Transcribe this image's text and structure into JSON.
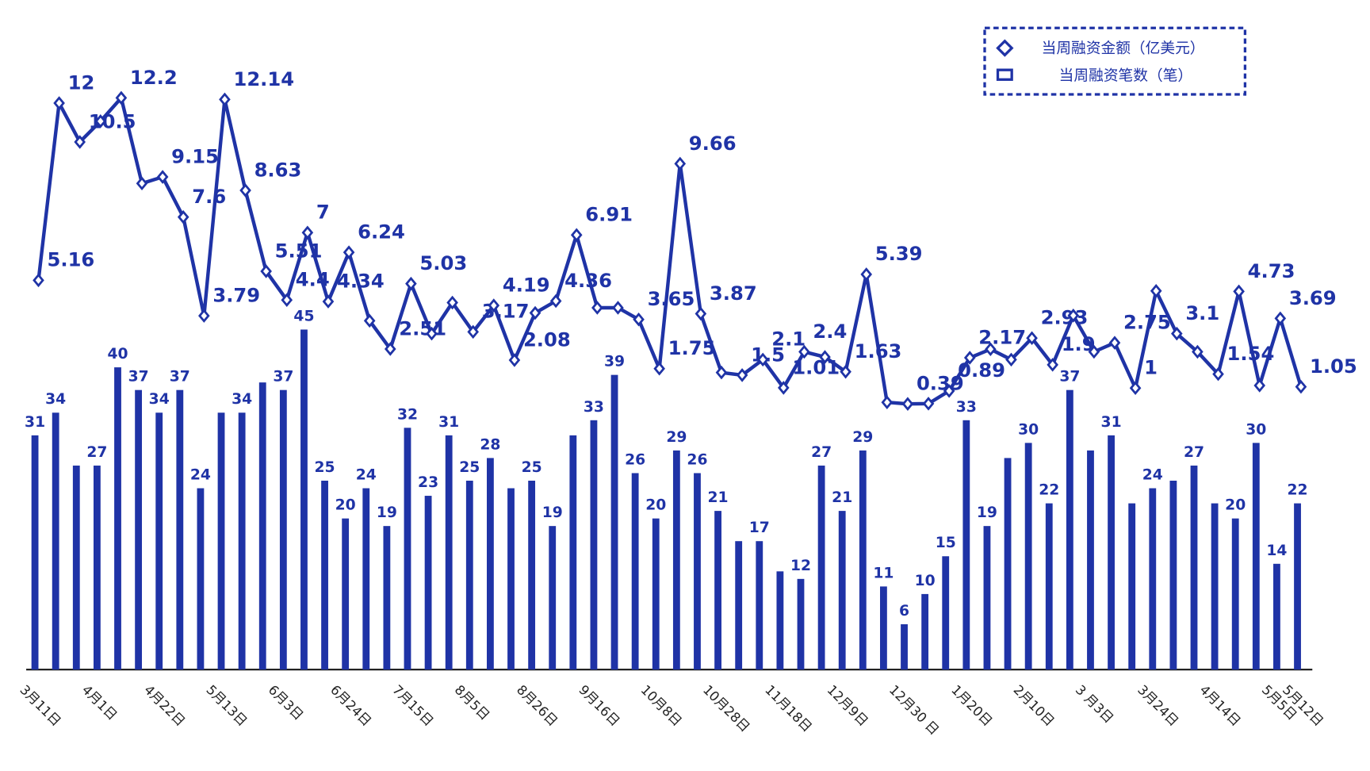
{
  "chart_data": {
    "type": "combo",
    "categories": [
      "3月11日",
      null,
      null,
      "4月1日",
      null,
      null,
      "4月22日",
      null,
      null,
      "5月13日",
      null,
      null,
      "6月3日",
      null,
      null,
      "6月24日",
      null,
      null,
      "7月15日",
      null,
      null,
      "8月5日",
      null,
      null,
      "8月26日",
      null,
      null,
      "9月16日",
      null,
      null,
      "10月8日",
      null,
      null,
      "10月28日",
      null,
      null,
      "11月18日",
      null,
      null,
      "12月9日",
      null,
      null,
      "12月30 日",
      null,
      null,
      "1月20日",
      null,
      null,
      "2月10日",
      null,
      null,
      "3 月3日",
      null,
      null,
      "3月24日",
      null,
      null,
      "4月14日",
      null,
      null,
      "5月5日",
      "5月12日"
    ],
    "legend": "top-right",
    "series": [
      {
        "name": "当周融资笔数（笔）",
        "type": "bar",
        "color": "#1f33a6",
        "values": [
          31,
          34,
          27,
          27,
          40,
          37,
          34,
          37,
          24,
          34,
          34,
          38,
          37,
          45,
          25,
          20,
          24,
          19,
          32,
          23,
          31,
          25,
          28,
          24,
          25,
          19,
          31,
          33,
          39,
          26,
          20,
          29,
          26,
          21,
          17,
          17,
          13,
          12,
          27,
          21,
          29,
          11,
          6,
          10,
          15,
          33,
          19,
          28,
          30,
          22,
          37,
          29,
          31,
          22,
          24,
          25,
          27,
          22,
          20,
          30,
          14,
          22
        ],
        "value_labels": [
          "31",
          "34",
          null,
          "27",
          "40",
          "37",
          "34",
          "37",
          "24",
          null,
          "34",
          null,
          "37",
          "45",
          "25",
          "20",
          "24",
          "19",
          "32",
          "23",
          "31",
          "25",
          "28",
          null,
          "25",
          "19",
          null,
          "33",
          "39",
          "26",
          "20",
          "29",
          "26",
          "21",
          null,
          "17",
          null,
          "12",
          "27",
          "21",
          "29",
          "11",
          "6",
          "10",
          "15",
          "33",
          "19",
          null,
          "30",
          "22",
          "37",
          null,
          "31",
          null,
          "24",
          null,
          "27",
          null,
          "20",
          "30",
          "14",
          "22"
        ]
      },
      {
        "name": "当周融资金额（亿美元）",
        "type": "line",
        "color": "#1f33a6",
        "values": [
          5.16,
          12,
          10.5,
          11.3,
          12.2,
          8.9,
          9.15,
          7.6,
          3.79,
          12.14,
          8.63,
          5.51,
          4.4,
          7,
          4.34,
          6.24,
          3.6,
          2.51,
          5.03,
          3.1,
          4.3,
          3.17,
          4.19,
          2.08,
          3.9,
          4.36,
          6.91,
          4.1,
          4.1,
          3.65,
          1.75,
          9.66,
          3.87,
          1.6,
          1.5,
          2.1,
          1.01,
          2.4,
          2.2,
          1.63,
          5.39,
          0.45,
          0.39,
          0.4,
          0.89,
          2.17,
          2.5,
          2.1,
          2.93,
          1.9,
          3.8,
          2.4,
          2.75,
          1,
          4.75,
          3.1,
          2.4,
          1.54,
          4.73,
          1.1,
          3.69,
          1.05
        ],
        "value_labels": [
          "5.16",
          "12",
          "10.5",
          null,
          "12.2",
          null,
          "9.15",
          "7.6",
          "3.79",
          "12.14",
          "8.63",
          "5.51",
          "4.4",
          "7",
          "4.34",
          "6.24",
          null,
          "2.51",
          "5.03",
          null,
          null,
          "3.17",
          "4.19",
          "2.08",
          null,
          "4.36",
          "6.91",
          null,
          null,
          "3.65",
          "1.75",
          "9.66",
          "3.87",
          null,
          "1.5",
          "2.1",
          "1.01",
          "2.4",
          null,
          "1.63",
          "5.39",
          null,
          "0.39",
          null,
          "0.89",
          "2.17",
          null,
          null,
          "2.93",
          "1.9",
          null,
          null,
          "2.75",
          "1",
          null,
          "3.1",
          null,
          "1.54",
          "4.73",
          null,
          "3.69",
          "1.05"
        ]
      }
    ]
  }
}
